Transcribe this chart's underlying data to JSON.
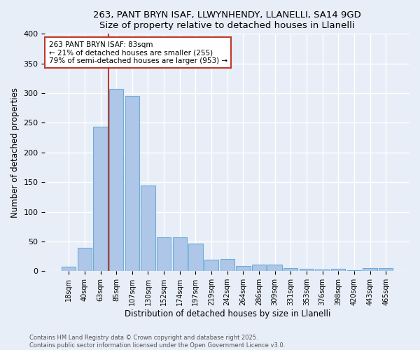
{
  "title1": "263, PANT BRYN ISAF, LLWYNHENDY, LLANELLI, SA14 9GD",
  "title2": "Size of property relative to detached houses in Llanelli",
  "xlabel": "Distribution of detached houses by size in Llanelli",
  "ylabel": "Number of detached properties",
  "bin_labels": [
    "18sqm",
    "40sqm",
    "63sqm",
    "85sqm",
    "107sqm",
    "130sqm",
    "152sqm",
    "174sqm",
    "197sqm",
    "219sqm",
    "242sqm",
    "264sqm",
    "286sqm",
    "309sqm",
    "331sqm",
    "353sqm",
    "376sqm",
    "398sqm",
    "420sqm",
    "443sqm",
    "465sqm"
  ],
  "bar_values": [
    8,
    39,
    243,
    307,
    295,
    144,
    57,
    57,
    47,
    19,
    20,
    9,
    11,
    11,
    5,
    4,
    3,
    4,
    1,
    5,
    5
  ],
  "bar_color": "#aec6e8",
  "bar_edge_color": "#6aaed6",
  "vline_color": "#c0392b",
  "annotation_text": "263 PANT BRYN ISAF: 83sqm\n← 21% of detached houses are smaller (255)\n79% of semi-detached houses are larger (953) →",
  "annotation_box_color": "#ffffff",
  "annotation_box_edge_color": "#c0392b",
  "ylim": [
    0,
    400
  ],
  "yticks": [
    0,
    50,
    100,
    150,
    200,
    250,
    300,
    350,
    400
  ],
  "footer1": "Contains HM Land Registry data © Crown copyright and database right 2025.",
  "footer2": "Contains public sector information licensed under the Open Government Licence v3.0.",
  "bg_color": "#e8eef7",
  "plot_bg_color": "#e8eef7",
  "grid_color": "#ffffff"
}
